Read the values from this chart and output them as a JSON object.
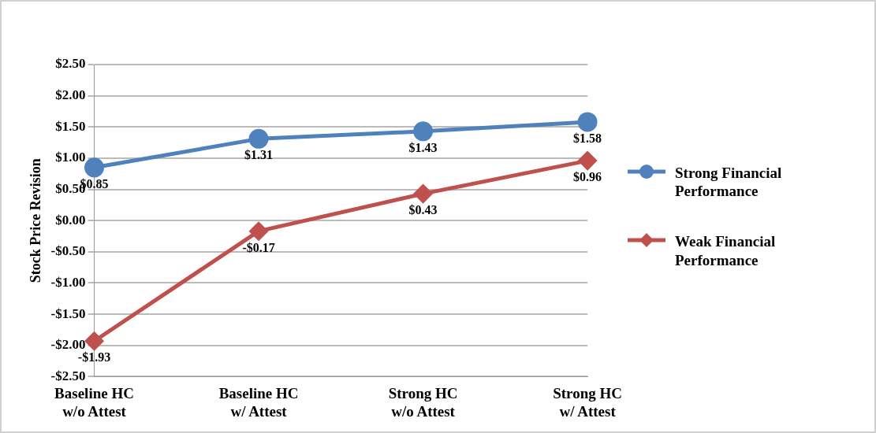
{
  "chart_data": {
    "type": "line",
    "ylabel": "Stock Price Revision",
    "categories": [
      "Baseline HC\nw/o Attest",
      "Baseline HC\nw/ Attest",
      "Strong HC\nw/o Attest",
      "Strong HC\nw/ Attest"
    ],
    "series": [
      {
        "name": "Strong Financial Performance",
        "color": "#4f81bd",
        "marker": "circle",
        "values": [
          0.85,
          1.31,
          1.43,
          1.58
        ],
        "value_labels": [
          "$0.85",
          "$1.31",
          "$1.43",
          "$1.58"
        ]
      },
      {
        "name": "Weak Financial Performance",
        "color": "#c0504d",
        "marker": "diamond",
        "values": [
          -1.93,
          -0.17,
          0.43,
          0.96
        ],
        "value_labels": [
          "-$1.93",
          "-$0.17",
          "$0.43",
          "$0.96"
        ]
      }
    ],
    "ylim": [
      -2.5,
      2.5
    ],
    "yticks": [
      {
        "value": 2.5,
        "label": "$2.50"
      },
      {
        "value": 2,
        "label": "$2.00"
      },
      {
        "value": 1.5,
        "label": "$1.50"
      },
      {
        "value": 1,
        "label": "$1.00"
      },
      {
        "value": 0.5,
        "label": "$0.50"
      },
      {
        "value": 0,
        "label": "$0.00"
      },
      {
        "value": -0.5,
        "label": "-$0.50"
      },
      {
        "value": -1,
        "label": "-$1.00"
      },
      {
        "value": -1.5,
        "label": "-$1.50"
      },
      {
        "value": -2,
        "label": "-$2.00"
      },
      {
        "value": -2.5,
        "label": "-$2.50"
      }
    ],
    "grid": "y",
    "legend": "right",
    "line_style": "solid"
  }
}
